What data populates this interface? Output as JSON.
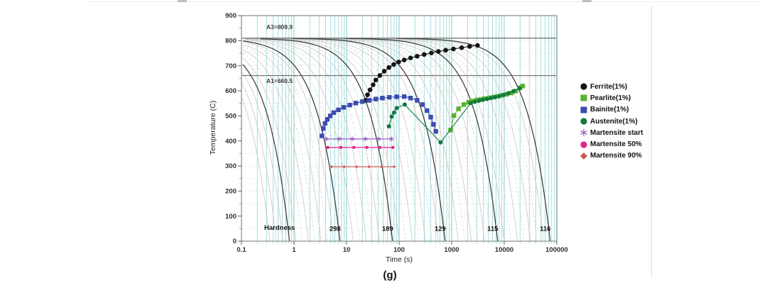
{
  "figure": {
    "caption": "(g)"
  },
  "chart_data": {
    "type": "scatter",
    "title": "",
    "xlabel": "Time (s)",
    "ylabel": "Temperature (C)",
    "xscale": "log",
    "xlim": [
      0.1,
      100000
    ],
    "ylim": [
      0,
      900
    ],
    "x_tick_labels": [
      "0.1",
      "1",
      "10",
      "100",
      "1000",
      "10000",
      "100000"
    ],
    "y_tick_step": 100,
    "y_minor_step": 50,
    "grid": {
      "vertical_color": "#8ed4d4",
      "vertical_decade_color": "#7fcccc",
      "horizontal_color": "#eebcbc"
    },
    "annotations": {
      "a3": {
        "label": "A3=809.9",
        "temperature": 809.9
      },
      "a1": {
        "label": "A1=660.5",
        "temperature": 660.5
      }
    },
    "hardness": {
      "label": "Hardness",
      "entries": [
        {
          "value": "298",
          "time": 7.5
        },
        {
          "value": "189",
          "time": 75
        },
        {
          "value": "129",
          "time": 750
        },
        {
          "value": "115",
          "time": 7500
        },
        {
          "value": "116",
          "time": 75000
        }
      ]
    },
    "cooling_curves": {
      "start_temperature": 810,
      "prominent_end_times": [
        0.82,
        7.5,
        75,
        750,
        7500,
        75000
      ],
      "intermediates_per_decade": 7,
      "color_prominent": "#3a3a3a",
      "color_intermediate": "#c7c7c7",
      "color_intermediate_dashed": "#c4ddd9"
    },
    "series": [
      {
        "name": "Ferrite(1%)",
        "marker": "circle",
        "color": "#141414",
        "points": [
          [
            23,
            562
          ],
          [
            25,
            584
          ],
          [
            28,
            604
          ],
          [
            32,
            624
          ],
          [
            36,
            643
          ],
          [
            43,
            661
          ],
          [
            52,
            678
          ],
          [
            64,
            693
          ],
          [
            79,
            705
          ],
          [
            98,
            715
          ],
          [
            125,
            723
          ],
          [
            165,
            731
          ],
          [
            220,
            738
          ],
          [
            300,
            745
          ],
          [
            410,
            751
          ],
          [
            560,
            757
          ],
          [
            770,
            762
          ],
          [
            1080,
            767
          ],
          [
            1550,
            772
          ],
          [
            2200,
            777
          ],
          [
            3100,
            781
          ]
        ]
      },
      {
        "name": "Pearlite(1%)",
        "marker": "square",
        "color": "#56b42e",
        "points": [
          [
            950,
            443
          ],
          [
            1100,
            501
          ],
          [
            1350,
            528
          ],
          [
            1700,
            545
          ],
          [
            2100,
            554
          ],
          [
            2500,
            559
          ],
          [
            3000,
            563
          ],
          [
            3600,
            566
          ],
          [
            4300,
            569
          ],
          [
            5200,
            572
          ],
          [
            6300,
            575
          ],
          [
            7600,
            578
          ],
          [
            9200,
            582
          ],
          [
            11000,
            586
          ],
          [
            13500,
            591
          ],
          [
            16500,
            599
          ],
          [
            20000,
            612
          ],
          [
            22500,
            619
          ]
        ]
      },
      {
        "name": "Bainite(1%)",
        "marker": "square",
        "color": "#3a4cb0",
        "points": [
          [
            3.4,
            420
          ],
          [
            3.6,
            450
          ],
          [
            3.9,
            470
          ],
          [
            4.3,
            486
          ],
          [
            4.9,
            500
          ],
          [
            5.7,
            513
          ],
          [
            7,
            524
          ],
          [
            8.8,
            534
          ],
          [
            11.5,
            543
          ],
          [
            15,
            551
          ],
          [
            20,
            557
          ],
          [
            27,
            562
          ],
          [
            36,
            567
          ],
          [
            48,
            571
          ],
          [
            65,
            574
          ],
          [
            90,
            576
          ],
          [
            125,
            577
          ],
          [
            165,
            571
          ],
          [
            220,
            562
          ],
          [
            280,
            545
          ],
          [
            340,
            521
          ],
          [
            400,
            495
          ],
          [
            450,
            466
          ],
          [
            500,
            438
          ]
        ]
      },
      {
        "name": "Austenite(1%)",
        "marker": "circle",
        "color": "#117a40",
        "points": [
          [
            64,
            458
          ],
          [
            72,
            497
          ],
          [
            80,
            513
          ],
          [
            90,
            531
          ],
          [
            128,
            545
          ],
          [
            615,
            394
          ],
          [
            2300,
            551
          ],
          [
            2750,
            556
          ],
          [
            3300,
            560
          ],
          [
            3900,
            564
          ],
          [
            4700,
            567
          ],
          [
            5600,
            571
          ],
          [
            6700,
            575
          ],
          [
            8100,
            579
          ],
          [
            9800,
            584
          ],
          [
            12000,
            590
          ],
          [
            15000,
            598
          ],
          [
            19500,
            610
          ]
        ]
      },
      {
        "name": "Martensite start",
        "marker": "asterisk",
        "color": "#9a5ec2",
        "temperature": 408,
        "time_range": [
          4.1,
          72
        ]
      },
      {
        "name": "Martensite 50%",
        "marker": "circle",
        "color": "#e6218c",
        "temperature": 374,
        "time_range": [
          4.4,
          76
        ]
      },
      {
        "name": "Martensite 90%",
        "marker": "diamond",
        "color": "#cf5555",
        "temperature": 297,
        "time_range": [
          5.2,
          80
        ]
      }
    ]
  }
}
